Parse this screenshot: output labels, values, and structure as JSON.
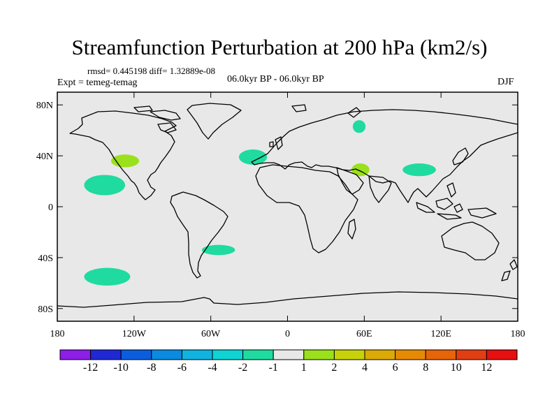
{
  "title": "Streamfunction Perturbation at 200 hPa (km2/s)",
  "stats": "rmsd= 0.445198 diff= 1.32889e-08",
  "experiment": "Expt = temeg-temag",
  "period": "06.0kyr BP - 06.0kyr BP",
  "season": "DJF",
  "map": {
    "background": "#e8e8e8",
    "lat_ticks": [
      {
        "lat": 80,
        "label": "80N"
      },
      {
        "lat": 40,
        "label": "40N"
      },
      {
        "lat": 0,
        "label": "0"
      },
      {
        "lat": -40,
        "label": "40S"
      },
      {
        "lat": -80,
        "label": "80S"
      }
    ],
    "lon_ticks": [
      {
        "lon": -180,
        "label": "180"
      },
      {
        "lon": -120,
        "label": "120W"
      },
      {
        "lon": -60,
        "label": "60W"
      },
      {
        "lon": 0,
        "label": "0"
      },
      {
        "lon": 60,
        "label": "60E"
      },
      {
        "lon": 120,
        "label": "120E"
      },
      {
        "lon": 180,
        "label": "180"
      }
    ],
    "anomalies": [
      {
        "name": "anomaly-east-pacific",
        "lon": -143,
        "lat": 17,
        "rlon": 16,
        "rlat": 8,
        "value": -1.5,
        "color": "#1fdba0"
      },
      {
        "name": "anomaly-california",
        "lon": -127,
        "lat": 36,
        "rlon": 11,
        "rlat": 5,
        "value": 1.5,
        "color": "#9be01c"
      },
      {
        "name": "anomaly-south-pacific",
        "lon": -141,
        "lat": -55,
        "rlon": 18,
        "rlat": 7,
        "value": -1.5,
        "color": "#1fdba0"
      },
      {
        "name": "anomaly-north-atlantic",
        "lon": -27,
        "lat": 39,
        "rlon": 11,
        "rlat": 6,
        "value": -1.5,
        "color": "#1fdba0"
      },
      {
        "name": "anomaly-south-america",
        "lon": -54,
        "lat": -34,
        "rlon": 13,
        "rlat": 4,
        "value": -1.5,
        "color": "#1fdba0"
      },
      {
        "name": "anomaly-west-siberia",
        "lon": 56,
        "lat": 63,
        "rlon": 5,
        "rlat": 5,
        "value": -1.5,
        "color": "#1fdba0"
      },
      {
        "name": "anomaly-middle-east",
        "lon": 57,
        "lat": 29,
        "rlon": 7,
        "rlat": 5,
        "value": 1.5,
        "color": "#9be01c"
      },
      {
        "name": "anomaly-china",
        "lon": 103,
        "lat": 29,
        "rlon": 13,
        "rlat": 5,
        "value": -1.5,
        "color": "#1fdba0"
      }
    ]
  },
  "colorbar": {
    "colors": [
      "#8c1ee6",
      "#2028d4",
      "#0a5ede",
      "#0a8ae0",
      "#10b2e0",
      "#10d4d4",
      "#1fdba0",
      "#e8e8e8",
      "#9be01c",
      "#c8d20a",
      "#dcaa06",
      "#e68a06",
      "#e6640a",
      "#e23e14",
      "#e61010"
    ],
    "labels": [
      "-12",
      "-10",
      "-8",
      "-6",
      "-4",
      "-2",
      "-1",
      "1",
      "2",
      "4",
      "6",
      "8",
      "10",
      "12"
    ]
  }
}
